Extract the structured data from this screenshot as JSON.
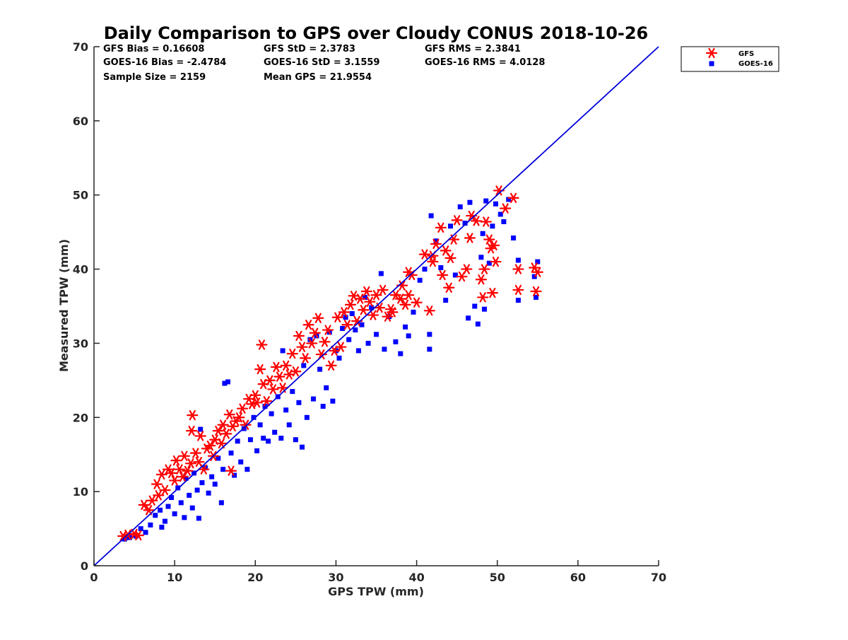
{
  "chart_data": {
    "type": "scatter",
    "title": "Daily Comparison to GPS over Cloudy CONUS 2018-10-26",
    "xlabel": "GPS TPW (mm)",
    "ylabel": "Measured TPW (mm)",
    "xlim": [
      0,
      70
    ],
    "ylim": [
      0,
      70
    ],
    "xticks": [
      0,
      10,
      20,
      30,
      40,
      50,
      60,
      70
    ],
    "yticks": [
      0,
      10,
      20,
      30,
      40,
      50,
      60,
      70
    ],
    "grid": false,
    "legend_position": "outside-top-right",
    "reference_line": {
      "x": [
        0,
        70
      ],
      "y": [
        0,
        70
      ],
      "color": "#0000dd"
    },
    "stats": [
      [
        "GFS Bias = 0.16608",
        "GFS StD = 2.3783",
        "GFS RMS = 2.3841"
      ],
      [
        "GOES-16 Bias = -2.4784",
        "GOES-16 StD = 3.1559",
        "GOES-16 RMS = 4.0128"
      ],
      [
        "Sample Size = 2159",
        "Mean GPS = 21.9554",
        ""
      ]
    ],
    "series": [
      {
        "name": "GFS",
        "marker": "asterisk",
        "color": "#ff0000",
        "points": [
          [
            3.6,
            4.0
          ],
          [
            4.2,
            4.2
          ],
          [
            5.0,
            4.3
          ],
          [
            5.5,
            4.1
          ],
          [
            6.2,
            8.2
          ],
          [
            6.8,
            7.5
          ],
          [
            7.2,
            8.8
          ],
          [
            7.8,
            11.0
          ],
          [
            8.0,
            9.5
          ],
          [
            8.4,
            12.3
          ],
          [
            8.8,
            10.2
          ],
          [
            9.2,
            13.0
          ],
          [
            9.6,
            12.5
          ],
          [
            10.0,
            11.5
          ],
          [
            10.2,
            14.2
          ],
          [
            10.6,
            13.0
          ],
          [
            11.0,
            12.0
          ],
          [
            11.2,
            14.8
          ],
          [
            11.6,
            12.8
          ],
          [
            12.0,
            13.8
          ],
          [
            12.2,
            20.3
          ],
          [
            12.1,
            18.2
          ],
          [
            12.6,
            15.2
          ],
          [
            13.0,
            14.0
          ],
          [
            13.2,
            17.5
          ],
          [
            13.6,
            13.0
          ],
          [
            14.0,
            15.8
          ],
          [
            14.4,
            16.2
          ],
          [
            14.8,
            14.8
          ],
          [
            15.0,
            17.0
          ],
          [
            15.4,
            18.2
          ],
          [
            15.8,
            16.5
          ],
          [
            16.0,
            19.0
          ],
          [
            16.4,
            17.8
          ],
          [
            16.8,
            20.4
          ],
          [
            17.0,
            12.8
          ],
          [
            17.2,
            18.8
          ],
          [
            17.6,
            19.5
          ],
          [
            18.0,
            20.0
          ],
          [
            18.4,
            21.2
          ],
          [
            18.8,
            19.0
          ],
          [
            19.2,
            22.5
          ],
          [
            19.6,
            21.8
          ],
          [
            20.0,
            23.0
          ],
          [
            20.2,
            22.0
          ],
          [
            20.6,
            26.5
          ],
          [
            20.8,
            29.8
          ],
          [
            21.0,
            24.5
          ],
          [
            21.4,
            22.2
          ],
          [
            21.8,
            25.0
          ],
          [
            22.2,
            23.8
          ],
          [
            22.6,
            26.8
          ],
          [
            23.0,
            25.5
          ],
          [
            23.4,
            24.0
          ],
          [
            23.8,
            27.0
          ],
          [
            24.2,
            25.8
          ],
          [
            24.6,
            28.6
          ],
          [
            25.0,
            26.2
          ],
          [
            25.4,
            31.0
          ],
          [
            25.8,
            29.5
          ],
          [
            26.2,
            28.0
          ],
          [
            26.6,
            32.5
          ],
          [
            27.0,
            30.0
          ],
          [
            27.4,
            31.4
          ],
          [
            27.8,
            33.4
          ],
          [
            28.2,
            28.5
          ],
          [
            28.6,
            30.2
          ],
          [
            29.0,
            31.8
          ],
          [
            29.4,
            27.0
          ],
          [
            29.8,
            29.0
          ],
          [
            30.2,
            33.5
          ],
          [
            30.6,
            29.5
          ],
          [
            31.0,
            34.2
          ],
          [
            31.4,
            32.5
          ],
          [
            31.8,
            35.2
          ],
          [
            32.2,
            36.4
          ],
          [
            32.6,
            33.0
          ],
          [
            33.0,
            36.0
          ],
          [
            33.4,
            34.5
          ],
          [
            33.8,
            37.0
          ],
          [
            34.2,
            35.6
          ],
          [
            34.6,
            33.8
          ],
          [
            35.0,
            36.5
          ],
          [
            35.4,
            34.8
          ],
          [
            35.8,
            37.2
          ],
          [
            36.4,
            33.6
          ],
          [
            37.0,
            34.2
          ],
          [
            37.4,
            36.5
          ],
          [
            38.0,
            36.0
          ],
          [
            38.6,
            35.2
          ],
          [
            39.0,
            39.6
          ],
          [
            39.4,
            39.2
          ],
          [
            40.0,
            35.5
          ],
          [
            41.0,
            42.0
          ],
          [
            41.6,
            34.4
          ],
          [
            42.0,
            41.8
          ],
          [
            42.4,
            43.4
          ],
          [
            42.0,
            41.0
          ],
          [
            43.0,
            45.6
          ],
          [
            43.6,
            42.5
          ],
          [
            44.2,
            41.5
          ],
          [
            44.0,
            37.5
          ],
          [
            44.6,
            44.0
          ],
          [
            45.0,
            46.6
          ],
          [
            45.6,
            39.0
          ],
          [
            46.2,
            40.0
          ],
          [
            46.6,
            44.2
          ],
          [
            46.8,
            47.2
          ],
          [
            47.4,
            46.5
          ],
          [
            48.0,
            38.6
          ],
          [
            48.4,
            40.0
          ],
          [
            48.6,
            46.4
          ],
          [
            49.0,
            44.0
          ],
          [
            49.2,
            42.8
          ],
          [
            49.4,
            36.8
          ],
          [
            49.6,
            43.2
          ],
          [
            49.8,
            41.0
          ],
          [
            50.2,
            50.6
          ],
          [
            51.0,
            48.2
          ],
          [
            52.0,
            49.6
          ],
          [
            52.6,
            40.0
          ],
          [
            52.6,
            37.2
          ],
          [
            54.8,
            37.0
          ],
          [
            55.0,
            39.6
          ],
          [
            54.6,
            40.2
          ],
          [
            48.2,
            36.2
          ],
          [
            43.2,
            39.2
          ],
          [
            39.0,
            36.5
          ],
          [
            38.2,
            37.8
          ],
          [
            36.8,
            34.6
          ]
        ]
      },
      {
        "name": "GOES-16",
        "marker": "square",
        "color": "#0000ff",
        "points": [
          [
            3.8,
            3.6
          ],
          [
            4.4,
            3.8
          ],
          [
            5.2,
            4.0
          ],
          [
            5.8,
            5.0
          ],
          [
            6.4,
            4.5
          ],
          [
            7.0,
            5.5
          ],
          [
            7.6,
            6.8
          ],
          [
            8.2,
            7.5
          ],
          [
            8.4,
            5.2
          ],
          [
            8.8,
            6.0
          ],
          [
            9.2,
            8.0
          ],
          [
            9.6,
            9.2
          ],
          [
            10.0,
            7.0
          ],
          [
            10.4,
            10.5
          ],
          [
            10.8,
            8.5
          ],
          [
            11.2,
            6.5
          ],
          [
            11.4,
            11.8
          ],
          [
            11.8,
            9.5
          ],
          [
            12.2,
            7.8
          ],
          [
            12.4,
            12.5
          ],
          [
            12.8,
            10.2
          ],
          [
            13.0,
            6.4
          ],
          [
            13.2,
            18.4
          ],
          [
            13.4,
            11.2
          ],
          [
            13.8,
            13.2
          ],
          [
            14.2,
            9.8
          ],
          [
            14.6,
            12.0
          ],
          [
            15.0,
            11.0
          ],
          [
            15.4,
            14.5
          ],
          [
            15.8,
            8.5
          ],
          [
            16.0,
            13.0
          ],
          [
            16.2,
            24.6
          ],
          [
            16.6,
            24.8
          ],
          [
            17.0,
            15.2
          ],
          [
            17.4,
            12.2
          ],
          [
            17.8,
            16.8
          ],
          [
            18.2,
            14.0
          ],
          [
            18.6,
            18.5
          ],
          [
            19.0,
            13.0
          ],
          [
            19.4,
            17.0
          ],
          [
            19.8,
            20.0
          ],
          [
            20.2,
            15.5
          ],
          [
            20.6,
            19.0
          ],
          [
            21.0,
            17.2
          ],
          [
            21.2,
            21.5
          ],
          [
            21.6,
            16.8
          ],
          [
            22.0,
            20.5
          ],
          [
            22.4,
            18.0
          ],
          [
            22.8,
            22.8
          ],
          [
            23.2,
            17.2
          ],
          [
            23.4,
            29.0
          ],
          [
            23.8,
            21.0
          ],
          [
            24.2,
            19.0
          ],
          [
            24.6,
            23.5
          ],
          [
            25.0,
            17.0
          ],
          [
            25.4,
            22.0
          ],
          [
            25.8,
            16.0
          ],
          [
            26.0,
            27.0
          ],
          [
            26.4,
            20.0
          ],
          [
            26.8,
            30.5
          ],
          [
            27.2,
            22.5
          ],
          [
            27.6,
            31.0
          ],
          [
            28.0,
            26.5
          ],
          [
            28.4,
            21.5
          ],
          [
            28.8,
            24.0
          ],
          [
            29.2,
            31.5
          ],
          [
            29.6,
            22.2
          ],
          [
            30.0,
            29.0
          ],
          [
            30.4,
            28.0
          ],
          [
            30.8,
            32.0
          ],
          [
            31.2,
            33.5
          ],
          [
            31.6,
            30.5
          ],
          [
            32.0,
            34.0
          ],
          [
            32.4,
            31.8
          ],
          [
            32.8,
            29.0
          ],
          [
            33.2,
            32.5
          ],
          [
            33.6,
            36.2
          ],
          [
            34.0,
            30.0
          ],
          [
            34.4,
            34.8
          ],
          [
            35.0,
            31.2
          ],
          [
            35.6,
            39.4
          ],
          [
            36.0,
            29.2
          ],
          [
            36.6,
            33.6
          ],
          [
            37.4,
            30.2
          ],
          [
            38.0,
            28.6
          ],
          [
            38.6,
            32.2
          ],
          [
            39.0,
            31.0
          ],
          [
            39.6,
            34.2
          ],
          [
            40.4,
            38.5
          ],
          [
            41.0,
            40.0
          ],
          [
            41.6,
            29.2
          ],
          [
            41.6,
            31.2
          ],
          [
            41.8,
            47.2
          ],
          [
            42.4,
            43.8
          ],
          [
            43.0,
            40.2
          ],
          [
            43.6,
            35.8
          ],
          [
            44.2,
            45.8
          ],
          [
            44.8,
            39.2
          ],
          [
            45.4,
            48.4
          ],
          [
            46.0,
            46.2
          ],
          [
            46.4,
            33.4
          ],
          [
            46.6,
            49.0
          ],
          [
            47.2,
            35.0
          ],
          [
            47.6,
            32.6
          ],
          [
            48.0,
            41.6
          ],
          [
            48.2,
            44.8
          ],
          [
            48.4,
            34.6
          ],
          [
            48.6,
            49.2
          ],
          [
            49.0,
            40.8
          ],
          [
            49.4,
            45.8
          ],
          [
            49.8,
            48.8
          ],
          [
            50.4,
            47.4
          ],
          [
            50.8,
            46.4
          ],
          [
            51.4,
            49.4
          ],
          [
            52.0,
            44.2
          ],
          [
            52.6,
            35.8
          ],
          [
            52.6,
            41.2
          ],
          [
            54.8,
            36.2
          ],
          [
            55.0,
            41.0
          ],
          [
            54.6,
            39.0
          ]
        ]
      }
    ]
  }
}
